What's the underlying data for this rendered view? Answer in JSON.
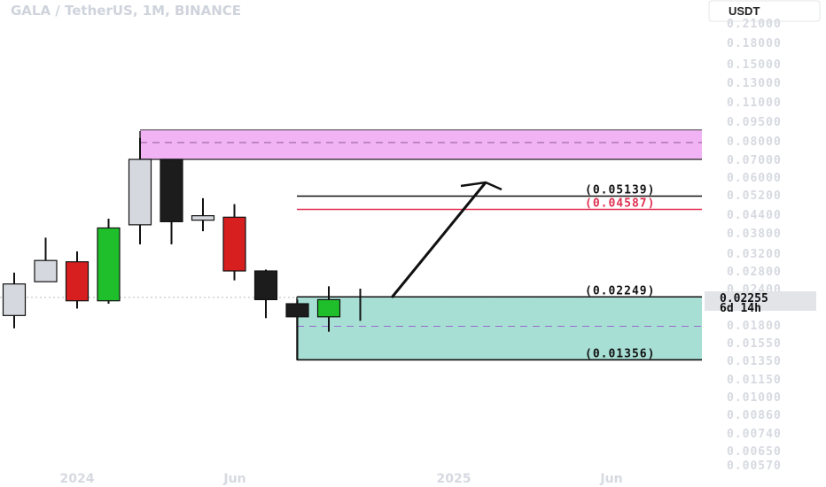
{
  "header": {
    "title": "GALA / TetherUS, 1M, BINANCE"
  },
  "axis": {
    "currency_label": "USDT"
  },
  "colors": {
    "up_green": "#1fbf2b",
    "down_red": "#d81f1f",
    "black_candle": "#1c1c1c",
    "gray_candle": "#d5d8de",
    "zone_pink": "#f2b3f5",
    "zone_teal": "#a7dfd4",
    "level_red": "#e03050",
    "dash_purple": "#9a6bd0"
  },
  "chart_data": {
    "type": "candlestick",
    "title": "GALA / TetherUS, 1M, BINANCE",
    "x_ticks": [
      "2024",
      "Jun",
      "2025",
      "Jun"
    ],
    "y_ticks": [
      "0.21000",
      "0.18000",
      "0.15000",
      "0.13000",
      "0.11000",
      "0.09500",
      "0.08000",
      "0.07000",
      "0.06000",
      "0.05200",
      "0.04400",
      "0.03800",
      "0.03200",
      "0.02800",
      "0.02400",
      "0.01800",
      "0.01550",
      "0.01350",
      "0.01150",
      "0.01000",
      "0.00860",
      "0.00740",
      "0.00650",
      "0.00570"
    ],
    "y_scale": "log",
    "ylim": [
      0.0055,
      0.23
    ],
    "candles": [
      {
        "open": 0.0194,
        "close": 0.025,
        "high": 0.0276,
        "low": 0.0175,
        "color": "gray"
      },
      {
        "open": 0.0255,
        "close": 0.0303,
        "high": 0.0365,
        "low": 0.0255,
        "color": "gray"
      },
      {
        "open": 0.03,
        "close": 0.0218,
        "high": 0.0325,
        "low": 0.0205,
        "color": "red"
      },
      {
        "open": 0.0218,
        "close": 0.0395,
        "high": 0.0425,
        "low": 0.0213,
        "color": "green"
      },
      {
        "open": 0.0405,
        "close": 0.07,
        "high": 0.082,
        "low": 0.0345,
        "color": "gray"
      },
      {
        "open": 0.07,
        "close": 0.0415,
        "high": 0.07,
        "low": 0.0345,
        "color": "black"
      },
      {
        "open": 0.042,
        "close": 0.0435,
        "high": 0.0505,
        "low": 0.0385,
        "color": "gray"
      },
      {
        "open": 0.043,
        "close": 0.028,
        "high": 0.048,
        "low": 0.0258,
        "color": "red"
      },
      {
        "open": 0.028,
        "close": 0.022,
        "high": 0.0283,
        "low": 0.019,
        "color": "black"
      },
      {
        "open": 0.0213,
        "close": 0.0192,
        "high": 0.022,
        "low": 0.0135,
        "color": "black"
      },
      {
        "open": 0.0192,
        "close": 0.022,
        "high": 0.0245,
        "low": 0.017,
        "color": "green"
      },
      {
        "open": 0.021,
        "close": 0.021,
        "high": 0.024,
        "low": 0.0186,
        "color": "doji"
      }
    ],
    "levels": [
      {
        "label": "(0.05139)",
        "value": 0.05139,
        "color": "#111111"
      },
      {
        "label": "(0.04587)",
        "value": 0.04587,
        "color": "#e03050"
      },
      {
        "label": "(0.02249)",
        "value": 0.02249,
        "color": "#111111"
      },
      {
        "label": "(0.01356)",
        "value": 0.01356,
        "color": "#111111"
      }
    ],
    "zones": [
      {
        "name": "supply",
        "top": 0.088,
        "bottom": 0.07,
        "mid": 0.079
      },
      {
        "name": "demand",
        "top": 0.02249,
        "bottom": 0.01356,
        "mid": 0.0178
      }
    ],
    "current_price": {
      "value": "0.02255",
      "countdown": "6d 14h"
    }
  }
}
